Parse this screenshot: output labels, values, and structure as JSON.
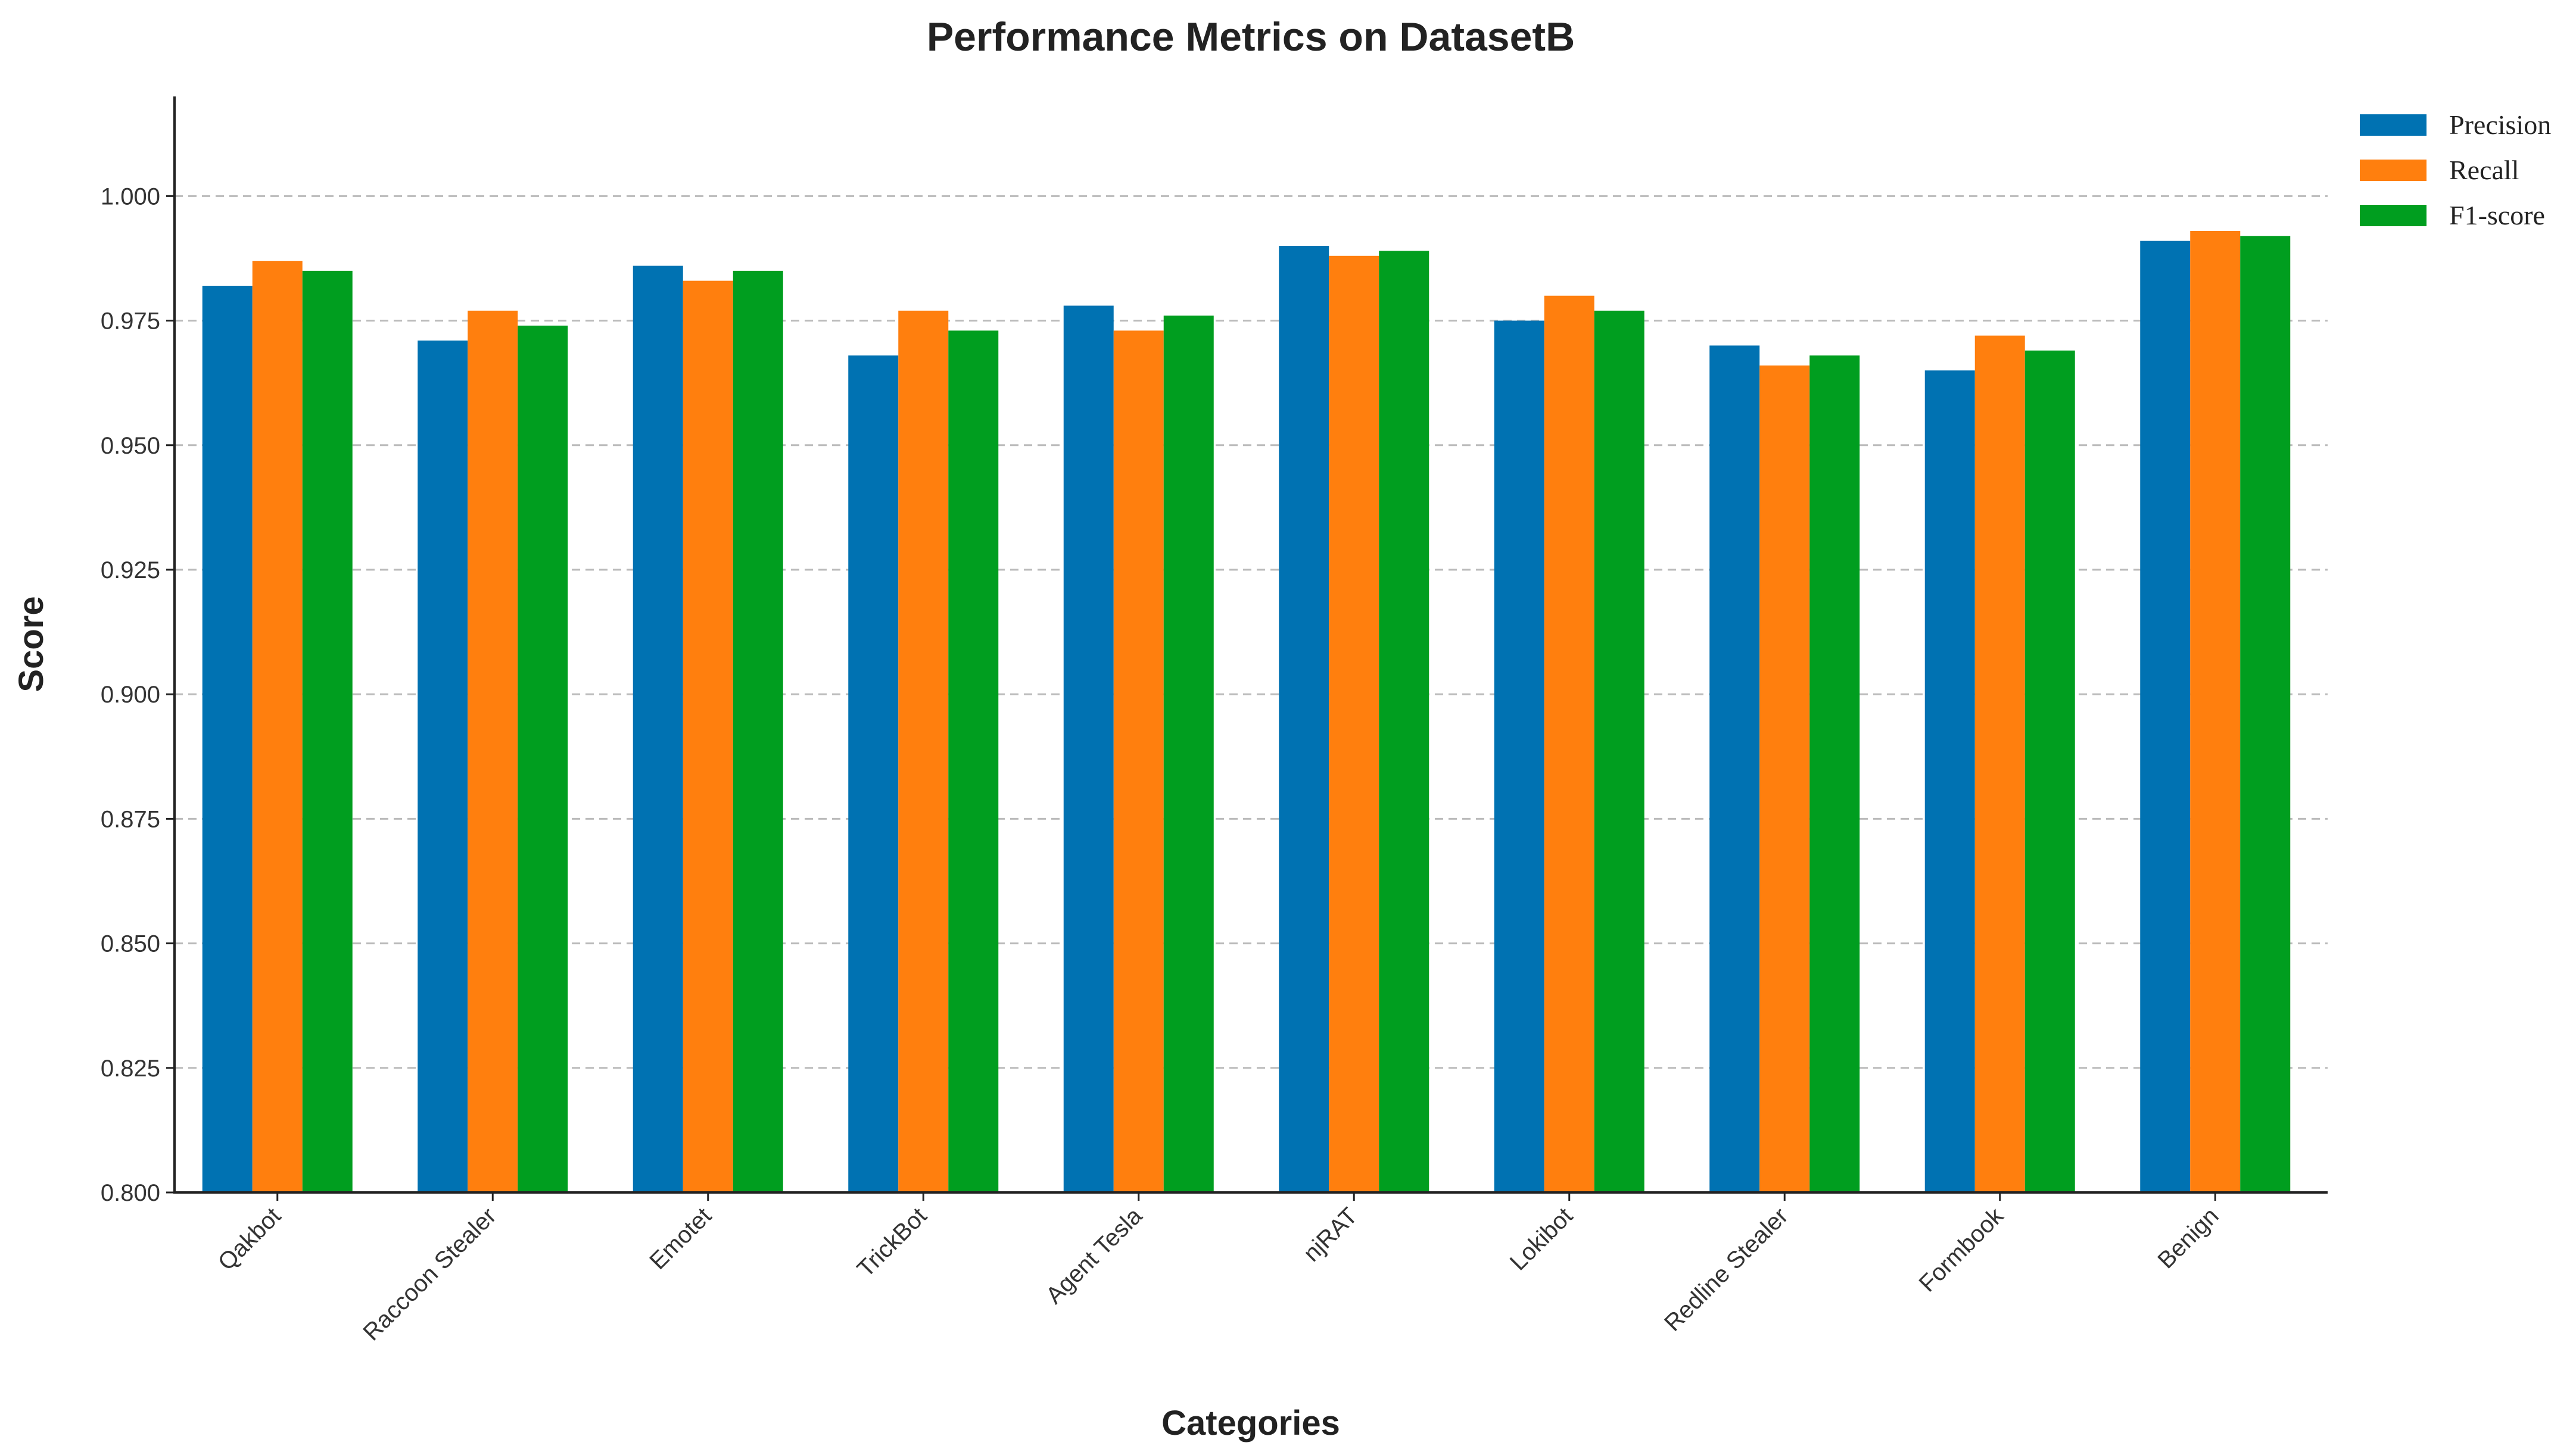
{
  "chart_data": {
    "type": "bar",
    "title": "Performance Metrics on DatasetB",
    "xlabel": "Categories",
    "ylabel": "Score",
    "ylim": [
      0.8,
      1.02
    ],
    "yticks": [
      "0.800",
      "0.825",
      "0.850",
      "0.875",
      "0.900",
      "0.925",
      "0.950",
      "0.975",
      "1.000"
    ],
    "grid": true,
    "legend_position": "top-right",
    "categories": [
      "Qakbot",
      "Raccoon Stealer",
      "Emotet",
      "TrickBot",
      "Agent Tesla",
      "njRAT",
      "Lokibot",
      "Redline Stealer",
      "Formbook",
      "Benign"
    ],
    "series": [
      {
        "name": "Precision",
        "color": "#0072B2",
        "values": [
          0.982,
          0.971,
          0.986,
          0.968,
          0.978,
          0.99,
          0.975,
          0.97,
          0.965,
          0.991
        ]
      },
      {
        "name": "Recall",
        "color": "#FF7F0E",
        "values": [
          0.987,
          0.977,
          0.983,
          0.977,
          0.973,
          0.988,
          0.98,
          0.966,
          0.972,
          0.993
        ]
      },
      {
        "name": "F1-score",
        "color": "#009E1F",
        "values": [
          0.985,
          0.974,
          0.985,
          0.973,
          0.976,
          0.989,
          0.977,
          0.968,
          0.969,
          0.992
        ]
      }
    ]
  }
}
